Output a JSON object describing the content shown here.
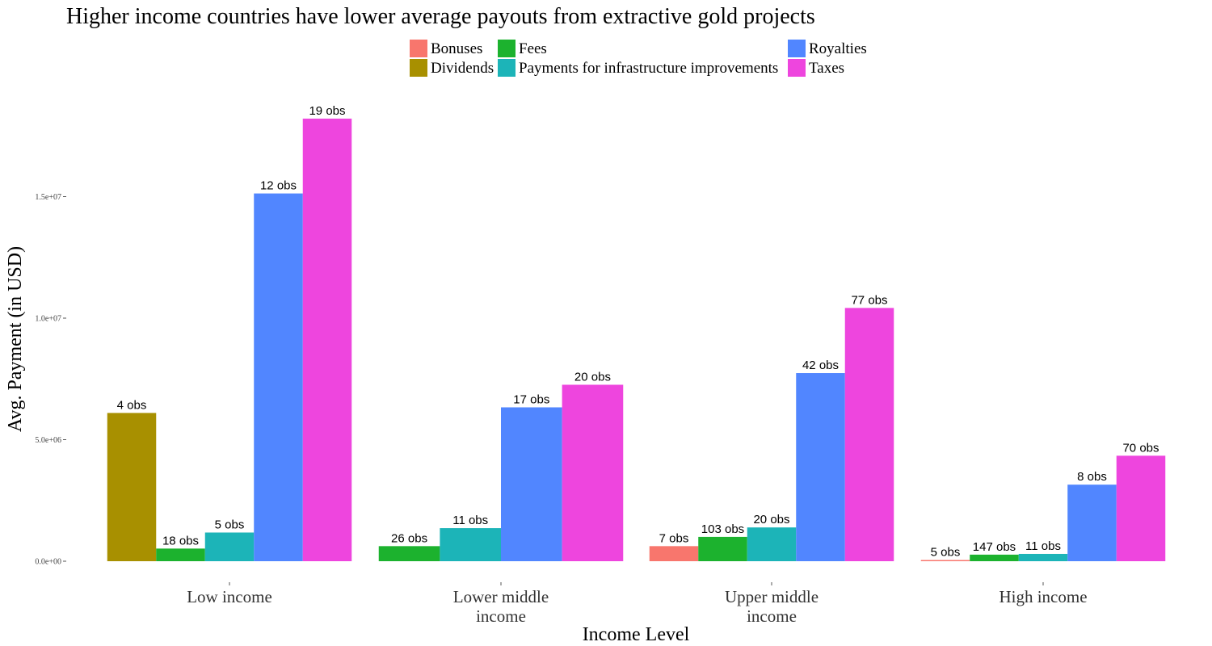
{
  "chart_data": {
    "type": "bar",
    "title": "Higher income countries have lower average payouts from extractive gold projects",
    "xlabel": "Income Level",
    "ylabel": "Avg. Payment (in USD)",
    "ylim": [
      0,
      18500000
    ],
    "y_ticks": [
      {
        "value": 0,
        "label": "0.0e+00"
      },
      {
        "value": 5000000,
        "label": "5.0e+06"
      },
      {
        "value": 10000000,
        "label": "1.0e+07"
      },
      {
        "value": 15000000,
        "label": "1.5e+07"
      }
    ],
    "grid": false,
    "legend_position": "top",
    "categories": [
      "Low income",
      "Lower middle income",
      "Upper middle income",
      "High income"
    ],
    "category_labels": [
      [
        "Low income"
      ],
      [
        "Lower middle",
        "income"
      ],
      [
        "Upper middle",
        "income"
      ],
      [
        "High income"
      ]
    ],
    "legend_items": [
      {
        "name": "Bonuses",
        "color": "#F8766D"
      },
      {
        "name": "Dividends",
        "color": "#A89000"
      },
      {
        "name": "Fees",
        "color": "#1CB22E"
      },
      {
        "name": "Payments for infrastructure improvements",
        "color": "#1CB4B8"
      },
      {
        "name": "Royalties",
        "color": "#5186FF"
      },
      {
        "name": "Taxes",
        "color": "#EE45DE"
      }
    ],
    "groups": [
      {
        "category": "Low income",
        "bars": [
          {
            "series": "Dividends",
            "value": 6100000,
            "label": "4 obs"
          },
          {
            "series": "Fees",
            "value": 520000,
            "label": "18 obs"
          },
          {
            "series": "Payments for infrastructure improvements",
            "value": 1180000,
            "label": "5 obs"
          },
          {
            "series": "Royalties",
            "value": 15130000,
            "label": "12 obs"
          },
          {
            "series": "Taxes",
            "value": 18210000,
            "label": "19 obs"
          }
        ]
      },
      {
        "category": "Lower middle income",
        "bars": [
          {
            "series": "Fees",
            "value": 620000,
            "label": "26 obs"
          },
          {
            "series": "Payments for infrastructure improvements",
            "value": 1360000,
            "label": "11 obs"
          },
          {
            "series": "Royalties",
            "value": 6330000,
            "label": "17 obs"
          },
          {
            "series": "Taxes",
            "value": 7260000,
            "label": "20 obs"
          }
        ]
      },
      {
        "category": "Upper middle income",
        "bars": [
          {
            "series": "Bonuses",
            "value": 620000,
            "label": "7 obs"
          },
          {
            "series": "Fees",
            "value": 1000000,
            "label": "103 obs"
          },
          {
            "series": "Payments for infrastructure improvements",
            "value": 1390000,
            "label": "20 obs"
          },
          {
            "series": "Royalties",
            "value": 7740000,
            "label": "42 obs"
          },
          {
            "series": "Taxes",
            "value": 10420000,
            "label": "77 obs"
          }
        ]
      },
      {
        "category": "High income",
        "bars": [
          {
            "series": "Bonuses",
            "value": 50000,
            "label": "5 obs"
          },
          {
            "series": "Fees",
            "value": 270000,
            "label": "147 obs"
          },
          {
            "series": "Payments for infrastructure improvements",
            "value": 300000,
            "label": "11 obs"
          },
          {
            "series": "Royalties",
            "value": 3150000,
            "label": "8 obs"
          },
          {
            "series": "Taxes",
            "value": 4340000,
            "label": "70 obs"
          }
        ]
      }
    ]
  }
}
